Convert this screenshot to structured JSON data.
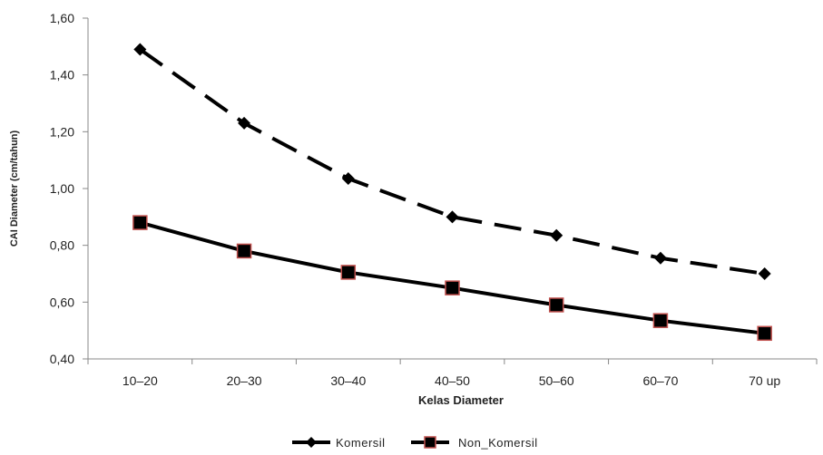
{
  "chart_data": {
    "type": "line",
    "xlabel": "Kelas Diameter",
    "ylabel": "CAI Diameter (cm/tahun)",
    "categories": [
      "10–20",
      "20–30",
      "30–40",
      "40–50",
      "50–60",
      "60–70",
      "70 up"
    ],
    "ylim": [
      0.4,
      1.6
    ],
    "yticks": [
      "0,40",
      "0,60",
      "0,80",
      "1,00",
      "1,20",
      "1,40",
      "1,60"
    ],
    "ytick_values": [
      0.4,
      0.6,
      0.8,
      1.0,
      1.2,
      1.4,
      1.6
    ],
    "grid": false,
    "legend_position": "bottom",
    "series": [
      {
        "name": "Komersil",
        "values": [
          1.49,
          1.23,
          1.035,
          0.9,
          0.835,
          0.755,
          0.7
        ],
        "line_style": "dashed",
        "marker": "diamond",
        "color": "#000000"
      },
      {
        "name": "Non_Komersil",
        "values": [
          0.88,
          0.78,
          0.705,
          0.65,
          0.59,
          0.535,
          0.49
        ],
        "line_style": "solid",
        "marker": "square",
        "color": "#000000",
        "marker_edge": "#c0504d"
      }
    ]
  }
}
